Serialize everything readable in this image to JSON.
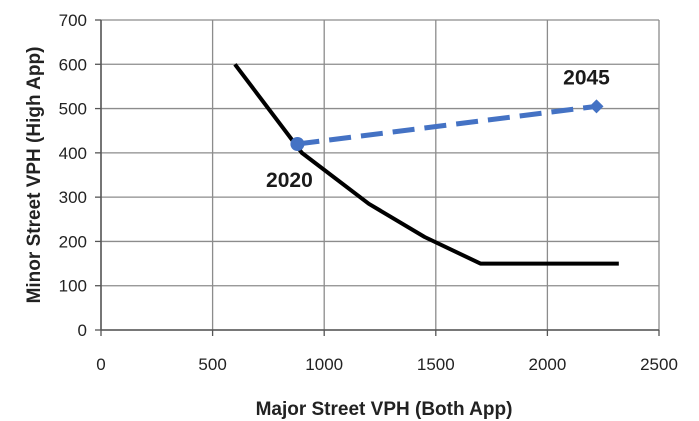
{
  "chart_data": {
    "type": "line",
    "title": "",
    "xlabel": "Major Street VPH (Both App)",
    "ylabel": "Minor Street VPH (High App)",
    "xlim": [
      0,
      2500
    ],
    "ylim": [
      0,
      700
    ],
    "xticks": [
      0,
      500,
      1000,
      1500,
      2000,
      2500
    ],
    "yticks": [
      0,
      100,
      200,
      300,
      400,
      500,
      600,
      700
    ],
    "xtick_labels": [
      "0",
      "500",
      "1000",
      "1500",
      "2000",
      "2500"
    ],
    "ytick_labels": [
      "0",
      "100",
      "200",
      "300",
      "400",
      "500",
      "600",
      "700"
    ],
    "grid": true,
    "legend": "none",
    "series": [
      {
        "style": "solid",
        "color": "#000000",
        "points": [
          {
            "x": 600,
            "y": 600
          },
          {
            "x": 900,
            "y": 400
          },
          {
            "x": 1200,
            "y": 285
          },
          {
            "x": 1450,
            "y": 210
          },
          {
            "x": 1700,
            "y": 150
          },
          {
            "x": 2320,
            "y": 150
          }
        ]
      },
      {
        "style": "dashed",
        "color": "#4472C4",
        "points": [
          {
            "x": 880,
            "y": 420,
            "label": "2020",
            "marker": "circle"
          },
          {
            "x": 2220,
            "y": 505,
            "label": "2045",
            "marker": "diamond"
          }
        ]
      }
    ]
  }
}
